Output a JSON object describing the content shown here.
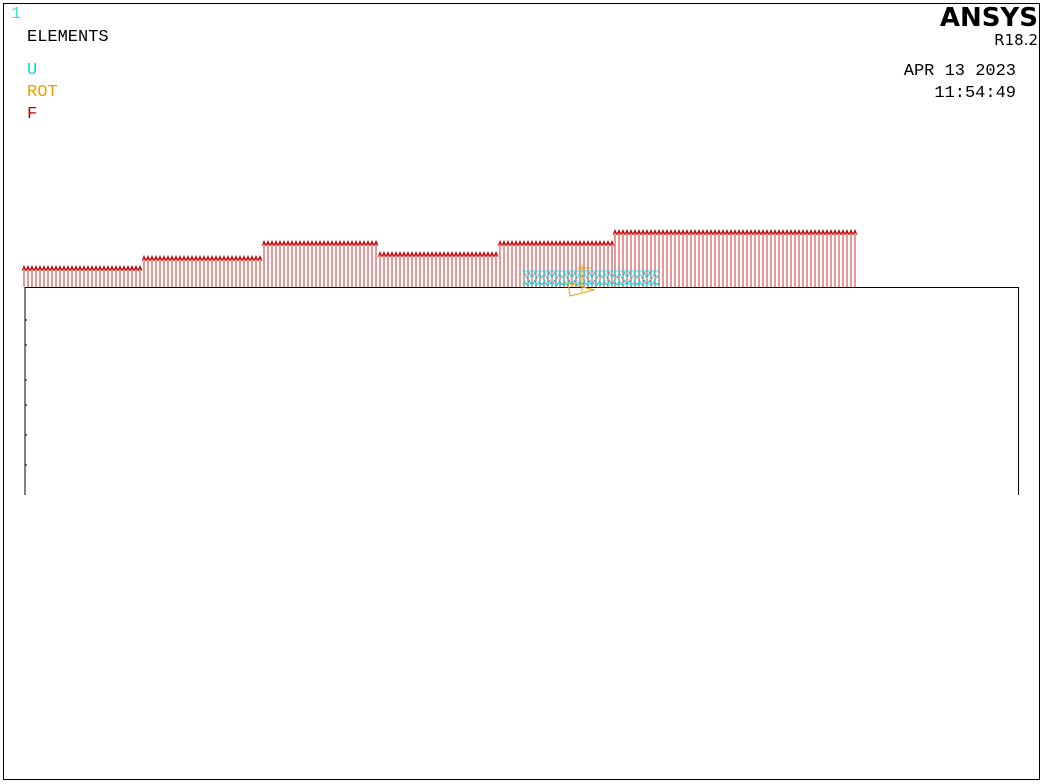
{
  "window_number": "1",
  "plot_label": "ELEMENTS",
  "legend": [
    {
      "label": "U",
      "color": "#00d8e0"
    },
    {
      "label": "ROT",
      "color": "#f0a000"
    },
    {
      "label": "F",
      "color": "#c00000"
    }
  ],
  "brand": {
    "name": "ANSYS",
    "version": "R18.2"
  },
  "date": "APR 13 2023",
  "time": "11:54:49"
}
